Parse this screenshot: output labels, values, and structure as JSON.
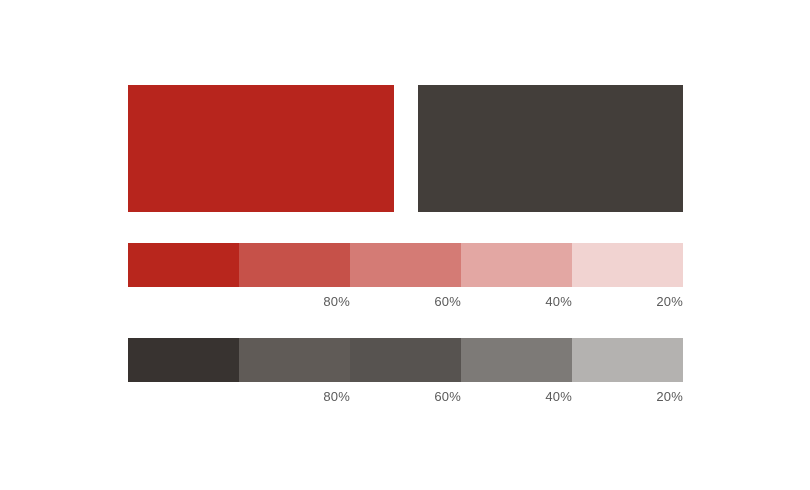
{
  "page": {
    "background": "#ffffff",
    "label_text_color": "#5a5a5a"
  },
  "swatches": {
    "primary": {
      "hex": "#b7251d"
    },
    "secondary": {
      "hex": "#433e3a"
    }
  },
  "scales": [
    {
      "name": "red-tint-scale",
      "base_hex": "#b7251d",
      "segments": [
        {
          "hex": "#b8261d",
          "label": ""
        },
        {
          "hex": "#c65149",
          "label": "80%"
        },
        {
          "hex": "#d47b75",
          "label": "60%"
        },
        {
          "hex": "#e3a7a3",
          "label": "40%"
        },
        {
          "hex": "#f1d3d1",
          "label": "20%"
        }
      ]
    },
    {
      "name": "gray-tint-scale",
      "base_hex": "#433e3a",
      "segments": [
        {
          "hex": "#383330",
          "label": ""
        },
        {
          "hex": "#605b57",
          "label": "80%"
        },
        {
          "hex": "#575350",
          "label": "60%"
        },
        {
          "hex": "#7d7a77",
          "label": "40%"
        },
        {
          "hex": "#b4b2b0",
          "label": "20%"
        }
      ]
    }
  ]
}
